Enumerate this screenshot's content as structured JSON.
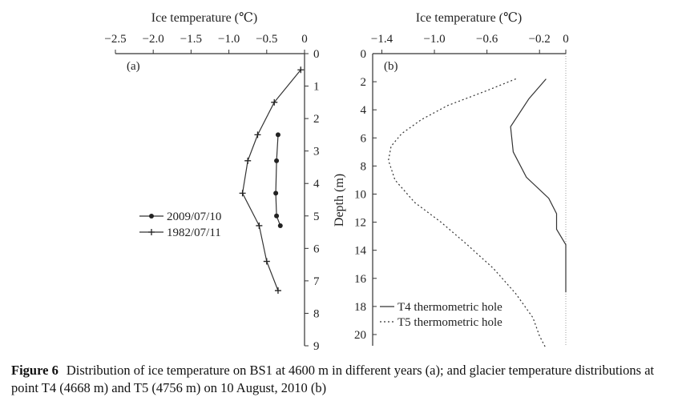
{
  "caption": {
    "label": "Figure 6",
    "text": "Distribution of ice temperature on BS1 at 4600 m in different years (a); and glacier temperature distributions at point T4 (4668 m) and T5 (4756 m) on 10 August, 2010 (b)"
  },
  "chart_data": [
    {
      "panel": "(a)",
      "type": "line",
      "xlabel": "Ice temperature (℃)",
      "ylabel": "",
      "xlim": [
        -2.5,
        0
      ],
      "ylim": [
        0,
        9
      ],
      "y_inverted": true,
      "x_axis_position": "top",
      "y_axis_position": "right",
      "x_ticks": [
        -2.5,
        -2.0,
        -1.5,
        -1.0,
        -0.5,
        0
      ],
      "x_tick_labels": [
        "−2.5",
        "−2.0",
        "−1.5",
        "−1.0",
        "−0.5",
        "0"
      ],
      "y_ticks": [
        0,
        1,
        2,
        3,
        4,
        5,
        6,
        7,
        8,
        9
      ],
      "y_tick_labels": [
        "0",
        "1",
        "2",
        "3",
        "4",
        "5",
        "6",
        "7",
        "8",
        "9"
      ],
      "legend_position": "left",
      "series": [
        {
          "name": "2009/07/10",
          "marker": "dot",
          "x": [
            -0.35,
            -0.37,
            -0.38,
            -0.37,
            -0.32
          ],
          "y": [
            2.5,
            3.3,
            4.3,
            5.0,
            5.3
          ]
        },
        {
          "name": "1982/07/11",
          "marker": "plus",
          "x": [
            -0.05,
            -0.4,
            -0.62,
            -0.75,
            -0.82,
            -0.6,
            -0.5,
            -0.35
          ],
          "y": [
            0.5,
            1.5,
            2.5,
            3.3,
            4.3,
            5.3,
            6.4,
            7.3
          ]
        }
      ]
    },
    {
      "panel": "(b)",
      "type": "line",
      "xlabel": "Ice temperature (℃)",
      "ylabel": "Depth (m)",
      "xlim": [
        -1.47,
        0
      ],
      "ylim": [
        0,
        20.8
      ],
      "y_inverted": true,
      "x_axis_position": "top",
      "y_axis_position": "left",
      "x_ticks": [
        -1.4,
        -1.0,
        -0.6,
        -0.2,
        0
      ],
      "x_tick_labels": [
        "−1.4",
        "−1.0",
        "−0.6",
        "−0.2",
        "0"
      ],
      "y_ticks": [
        0,
        2,
        4,
        6,
        8,
        10,
        12,
        14,
        16,
        18,
        20
      ],
      "y_tick_labels": [
        "0",
        "2",
        "4",
        "6",
        "8",
        "10",
        "12",
        "14",
        "16",
        "18",
        "20"
      ],
      "legend_position": "bottom-right",
      "series": [
        {
          "name": "T4 thermometric hole",
          "style": "solid",
          "x": [
            -0.15,
            -0.28,
            -0.42,
            -0.4,
            -0.3,
            -0.13,
            -0.07,
            -0.07,
            0,
            0
          ],
          "y": [
            1.8,
            3.2,
            5.2,
            7.0,
            8.8,
            10.3,
            11.4,
            12.5,
            13.6,
            17.0
          ]
        },
        {
          "name": "T5 thermometric hole",
          "style": "dotted",
          "x": [
            -0.38,
            -0.62,
            -0.9,
            -1.1,
            -1.25,
            -1.33,
            -1.35,
            -1.3,
            -1.15,
            -0.95,
            -0.75,
            -0.55,
            -0.38,
            -0.25,
            -0.2,
            -0.15
          ],
          "y": [
            1.8,
            2.7,
            3.7,
            4.7,
            5.7,
            6.6,
            7.6,
            9.0,
            10.6,
            12.0,
            13.6,
            15.3,
            17.1,
            18.8,
            20.1,
            21.0
          ]
        }
      ]
    }
  ]
}
